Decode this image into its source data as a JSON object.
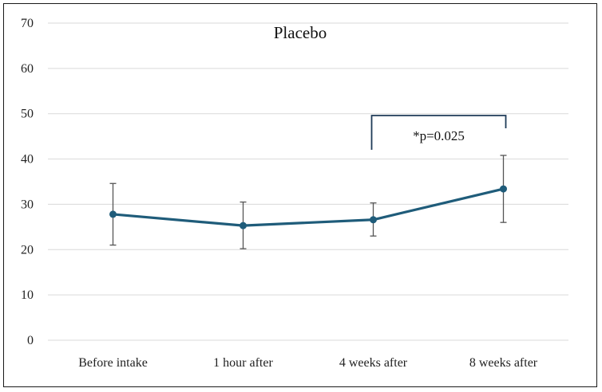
{
  "chart_data": {
    "type": "line",
    "title": "Placebo",
    "xlabel": "",
    "ylabel": "",
    "categories": [
      "Before intake",
      "1 hour after",
      "4 weeks after",
      "8 weeks after"
    ],
    "series": [
      {
        "values": [
          27.8,
          25.3,
          26.6,
          33.4
        ],
        "error_low": [
          21.0,
          20.2,
          23.0,
          26.0
        ],
        "error_high": [
          34.6,
          30.5,
          30.3,
          40.8
        ]
      }
    ],
    "ylim": [
      0,
      70
    ],
    "yticks": [
      0,
      10,
      20,
      30,
      40,
      50,
      60,
      70
    ],
    "grid": true,
    "annotation": {
      "text": "*p=0.025",
      "from_category": "4 weeks after",
      "to_category": "8 weeks after"
    },
    "colors": {
      "line": "#1f5c7a",
      "error_bar": "#555555",
      "bracket": "#1f3b57"
    }
  }
}
